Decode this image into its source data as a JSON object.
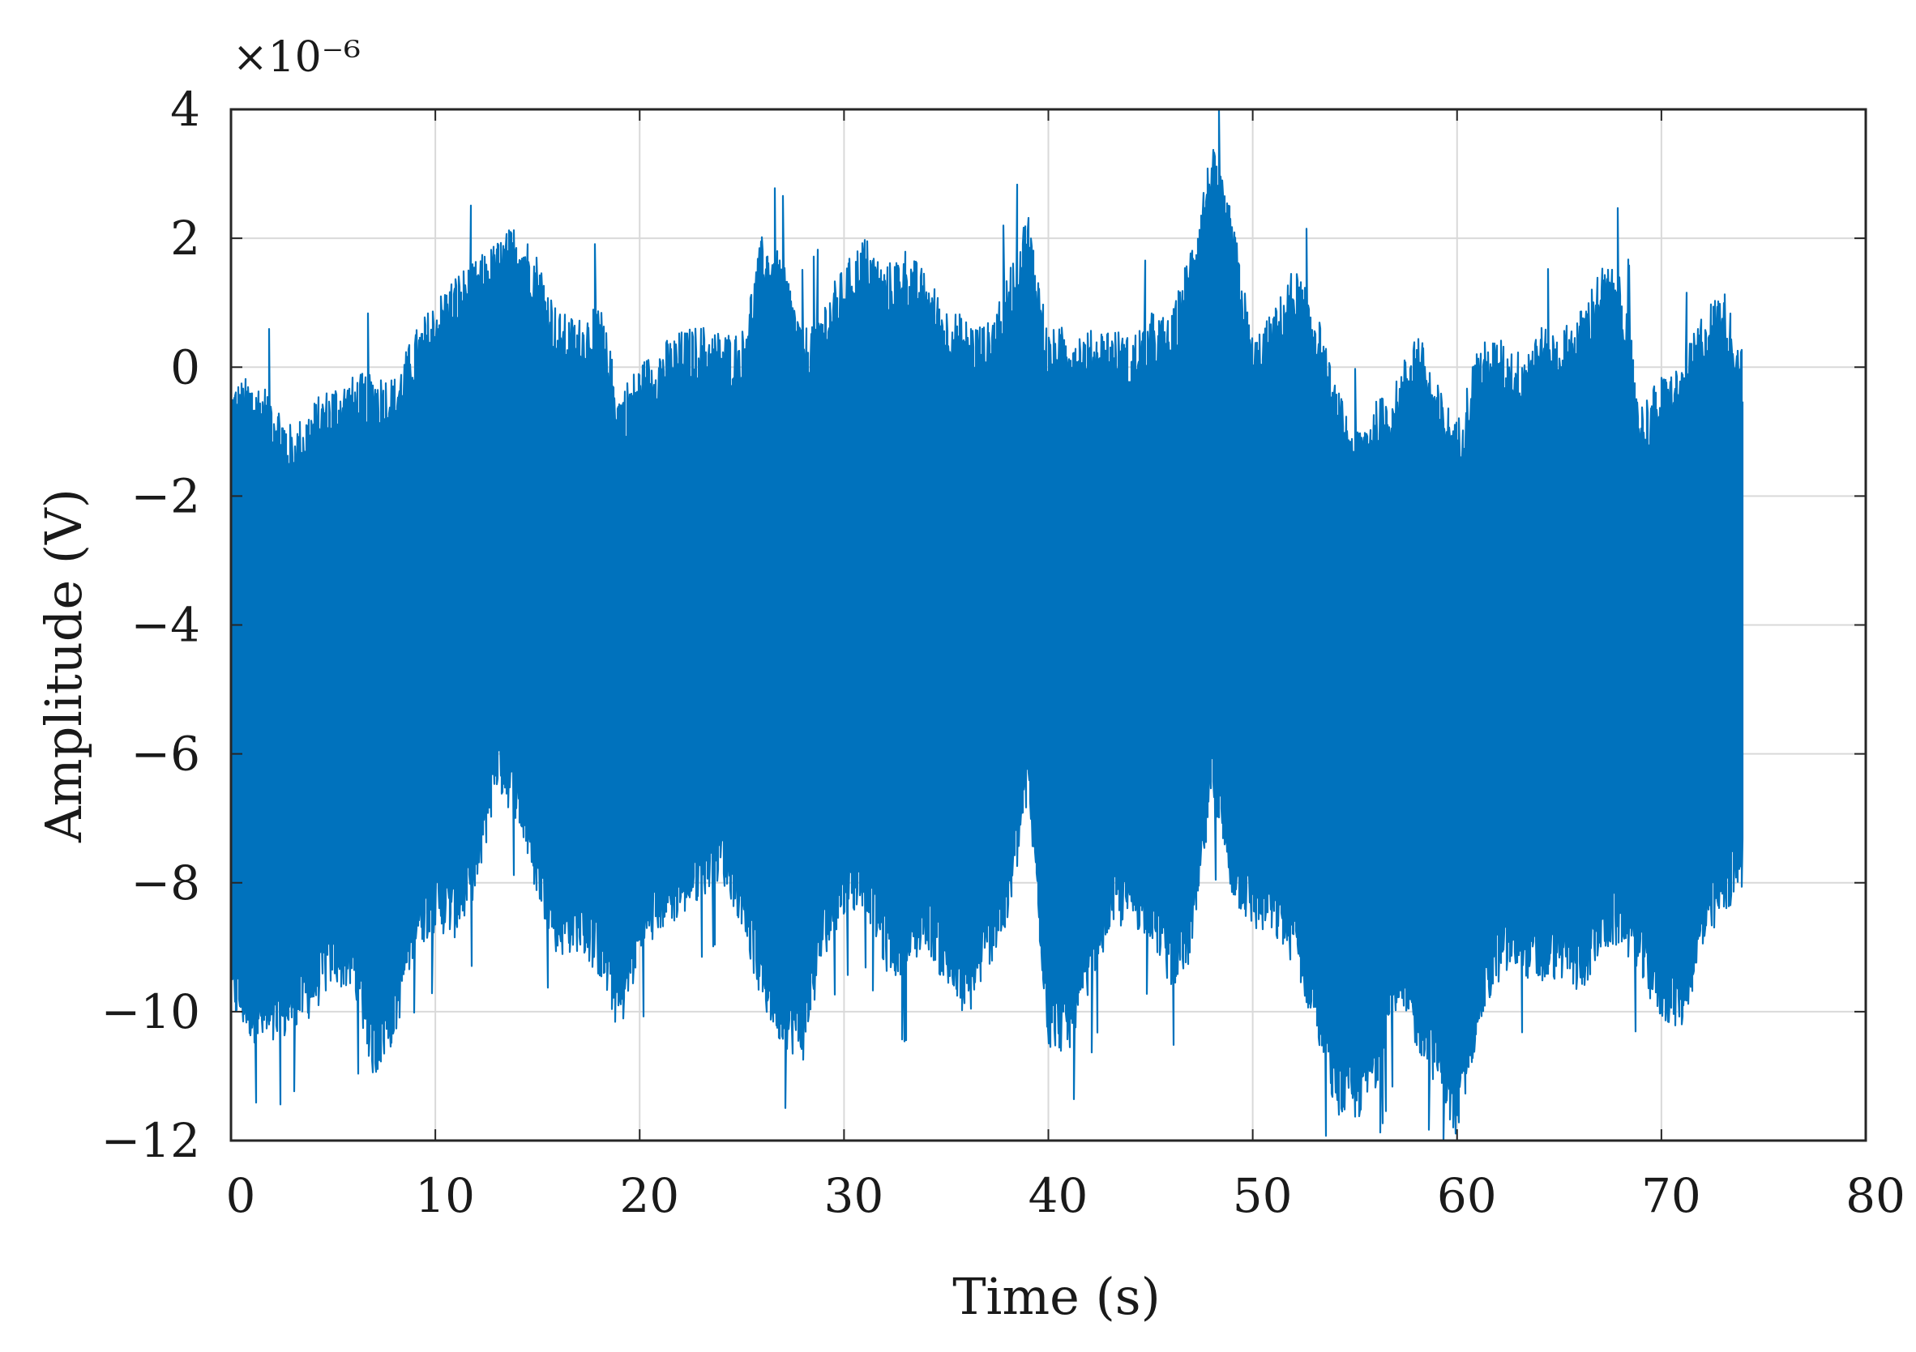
{
  "chart_data": {
    "type": "line",
    "xlabel": "Time (s)",
    "ylabel": "Amplitude (V)",
    "y_multiplier": "×10⁻⁶",
    "xlim": [
      0,
      80
    ],
    "ylim": [
      -12,
      4
    ],
    "xticks": [
      0,
      10,
      20,
      30,
      40,
      50,
      60,
      70,
      80
    ],
    "yticks": [
      4,
      2,
      0,
      -2,
      -4,
      -6,
      -8,
      -10,
      -12
    ],
    "grid": true,
    "line_color": "#0072BD",
    "series": [
      {
        "envelope_step_s": 1,
        "t_range": [
          0,
          74
        ],
        "upper": [
          -0.5,
          -0.4,
          -0.6,
          -1.2,
          -0.8,
          -0.5,
          -0.4,
          -0.3,
          -0.4,
          0.3,
          0.8,
          1.2,
          1.4,
          1.7,
          2.0,
          1.5,
          0.6,
          0.5,
          0.8,
          -0.6,
          -0.2,
          0.1,
          0.3,
          0.4,
          0.3,
          0.3,
          1.8,
          1.5,
          0.3,
          0.8,
          1.3,
          1.8,
          1.3,
          1.6,
          1.2,
          0.7,
          0.5,
          0.4,
          1.2,
          2.2,
          0.3,
          0.4,
          0.3,
          0.4,
          0.2,
          0.6,
          0.5,
          1.7,
          3.2,
          2.1,
          0.2,
          0.6,
          1.3,
          0.8,
          -0.5,
          -1.2,
          -0.8,
          -0.5,
          0.4,
          -0.5,
          -1.1,
          0.1,
          0.2,
          0.0,
          0.4,
          0.3,
          0.6,
          1.3,
          1.3,
          -0.8,
          -0.4,
          -0.2,
          0.6,
          1.0,
          0.0
        ],
        "lower": [
          -9.8,
          -10.2,
          -10.4,
          -10.1,
          -9.8,
          -9.3,
          -9.5,
          -10.8,
          -10.2,
          -8.8,
          -8.5,
          -8.6,
          -8.0,
          -6.3,
          -6.8,
          -8.0,
          -8.9,
          -8.8,
          -9.2,
          -10.1,
          -9.0,
          -8.5,
          -8.3,
          -8.0,
          -7.7,
          -8.4,
          -9.7,
          -10.3,
          -10.5,
          -8.9,
          -8.3,
          -8.1,
          -9.1,
          -9.3,
          -8.7,
          -9.4,
          -9.9,
          -9.1,
          -8.5,
          -6.5,
          -10.3,
          -10.4,
          -9.6,
          -8.5,
          -8.4,
          -8.6,
          -9.4,
          -9.0,
          -6.5,
          -8.0,
          -8.5,
          -8.6,
          -9.0,
          -10.0,
          -11.3,
          -11.5,
          -11.0,
          -9.8,
          -10.3,
          -10.9,
          -11.8,
          -10.1,
          -9.3,
          -9.1,
          -9.4,
          -9.2,
          -9.5,
          -8.9,
          -8.7,
          -9.3,
          -9.9,
          -10.0,
          -8.9,
          -8.3,
          -7.8
        ]
      }
    ]
  }
}
